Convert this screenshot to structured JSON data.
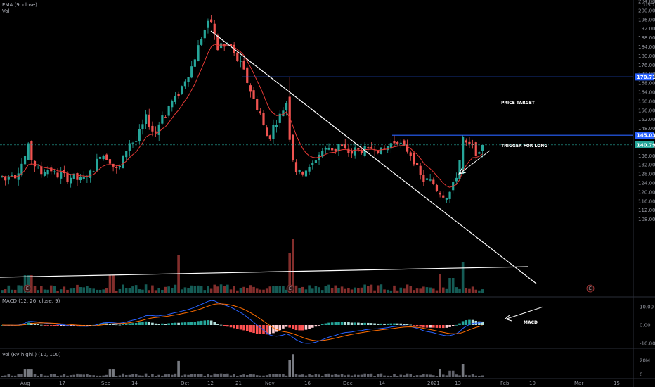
{
  "legends": {
    "main_indicator": "EMA (9, close)",
    "volume": "Vol",
    "macd": "MACD (12, 26, close, 9)",
    "vol_rv": "Vol (RV highl.) (10, 100)"
  },
  "currency": "USD",
  "annotations": {
    "price_target": "PRICE TARGET",
    "trigger": "TRIGGER FOR LONG",
    "macd_note": "MACD"
  },
  "earnings_marker": "E",
  "price_tags": [
    {
      "text": "170.71",
      "value": 170.71,
      "color": "#2962ff",
      "fg": "#ffffff"
    },
    {
      "text": "145.03",
      "value": 145.03,
      "color": "#2962ff",
      "fg": "#ffffff"
    },
    {
      "text": "140.79",
      "value": 140.79,
      "color": "#26a69a",
      "fg": "#ffffff"
    }
  ],
  "colors": {
    "up": "#26a69a",
    "down": "#ef5350",
    "ema": "#e53935",
    "trend_line": "#ffffff",
    "level_line": "#2962ff",
    "macd_line": "#2962ff",
    "signal_line": "#ff6d00",
    "hist_up": "#26a69a",
    "hist_up_light": "#b2dfdb",
    "hist_down": "#ff5252",
    "hist_down_light": "#ffcdd2",
    "grey_vol": "#787b86",
    "current_price_line": "#26a69a"
  },
  "chart_data": [
    {
      "type": "candlestick",
      "title": "",
      "ylim": [
        104,
        204
      ],
      "y_ticks": [
        "204.00",
        "200.00",
        "196.00",
        "192.00",
        "188.00",
        "184.00",
        "180.00",
        "176.00",
        "172.00",
        "168.00",
        "164.00",
        "160.00",
        "156.00",
        "152.00",
        "148.00",
        "144.00",
        "140.00",
        "136.00",
        "132.00",
        "128.00",
        "124.00",
        "120.00",
        "116.00",
        "112.00",
        "108.00"
      ],
      "x_ticks": [
        "Aug",
        "17",
        "Sep",
        "14",
        "Oct",
        "12",
        "21",
        "Nov",
        "16",
        "Dec",
        "14",
        "2021",
        "13",
        "Feb",
        "10",
        "Mar",
        "15"
      ],
      "ema_period": 9,
      "key_values": {
        "high": 197.8,
        "low": 115.0,
        "last": 140.79,
        "price_target": 170.71,
        "trigger": 145.03
      }
    },
    {
      "type": "bar",
      "title": "MACD (12, 26, close, 9)",
      "y_ticks": [
        "10.00",
        "0.00",
        "-10.00"
      ],
      "ylim": [
        -12,
        12
      ]
    },
    {
      "type": "bar",
      "title": "Vol (RV highl.) (10, 100)",
      "y_ticks": [
        "20M",
        "0"
      ]
    }
  ]
}
